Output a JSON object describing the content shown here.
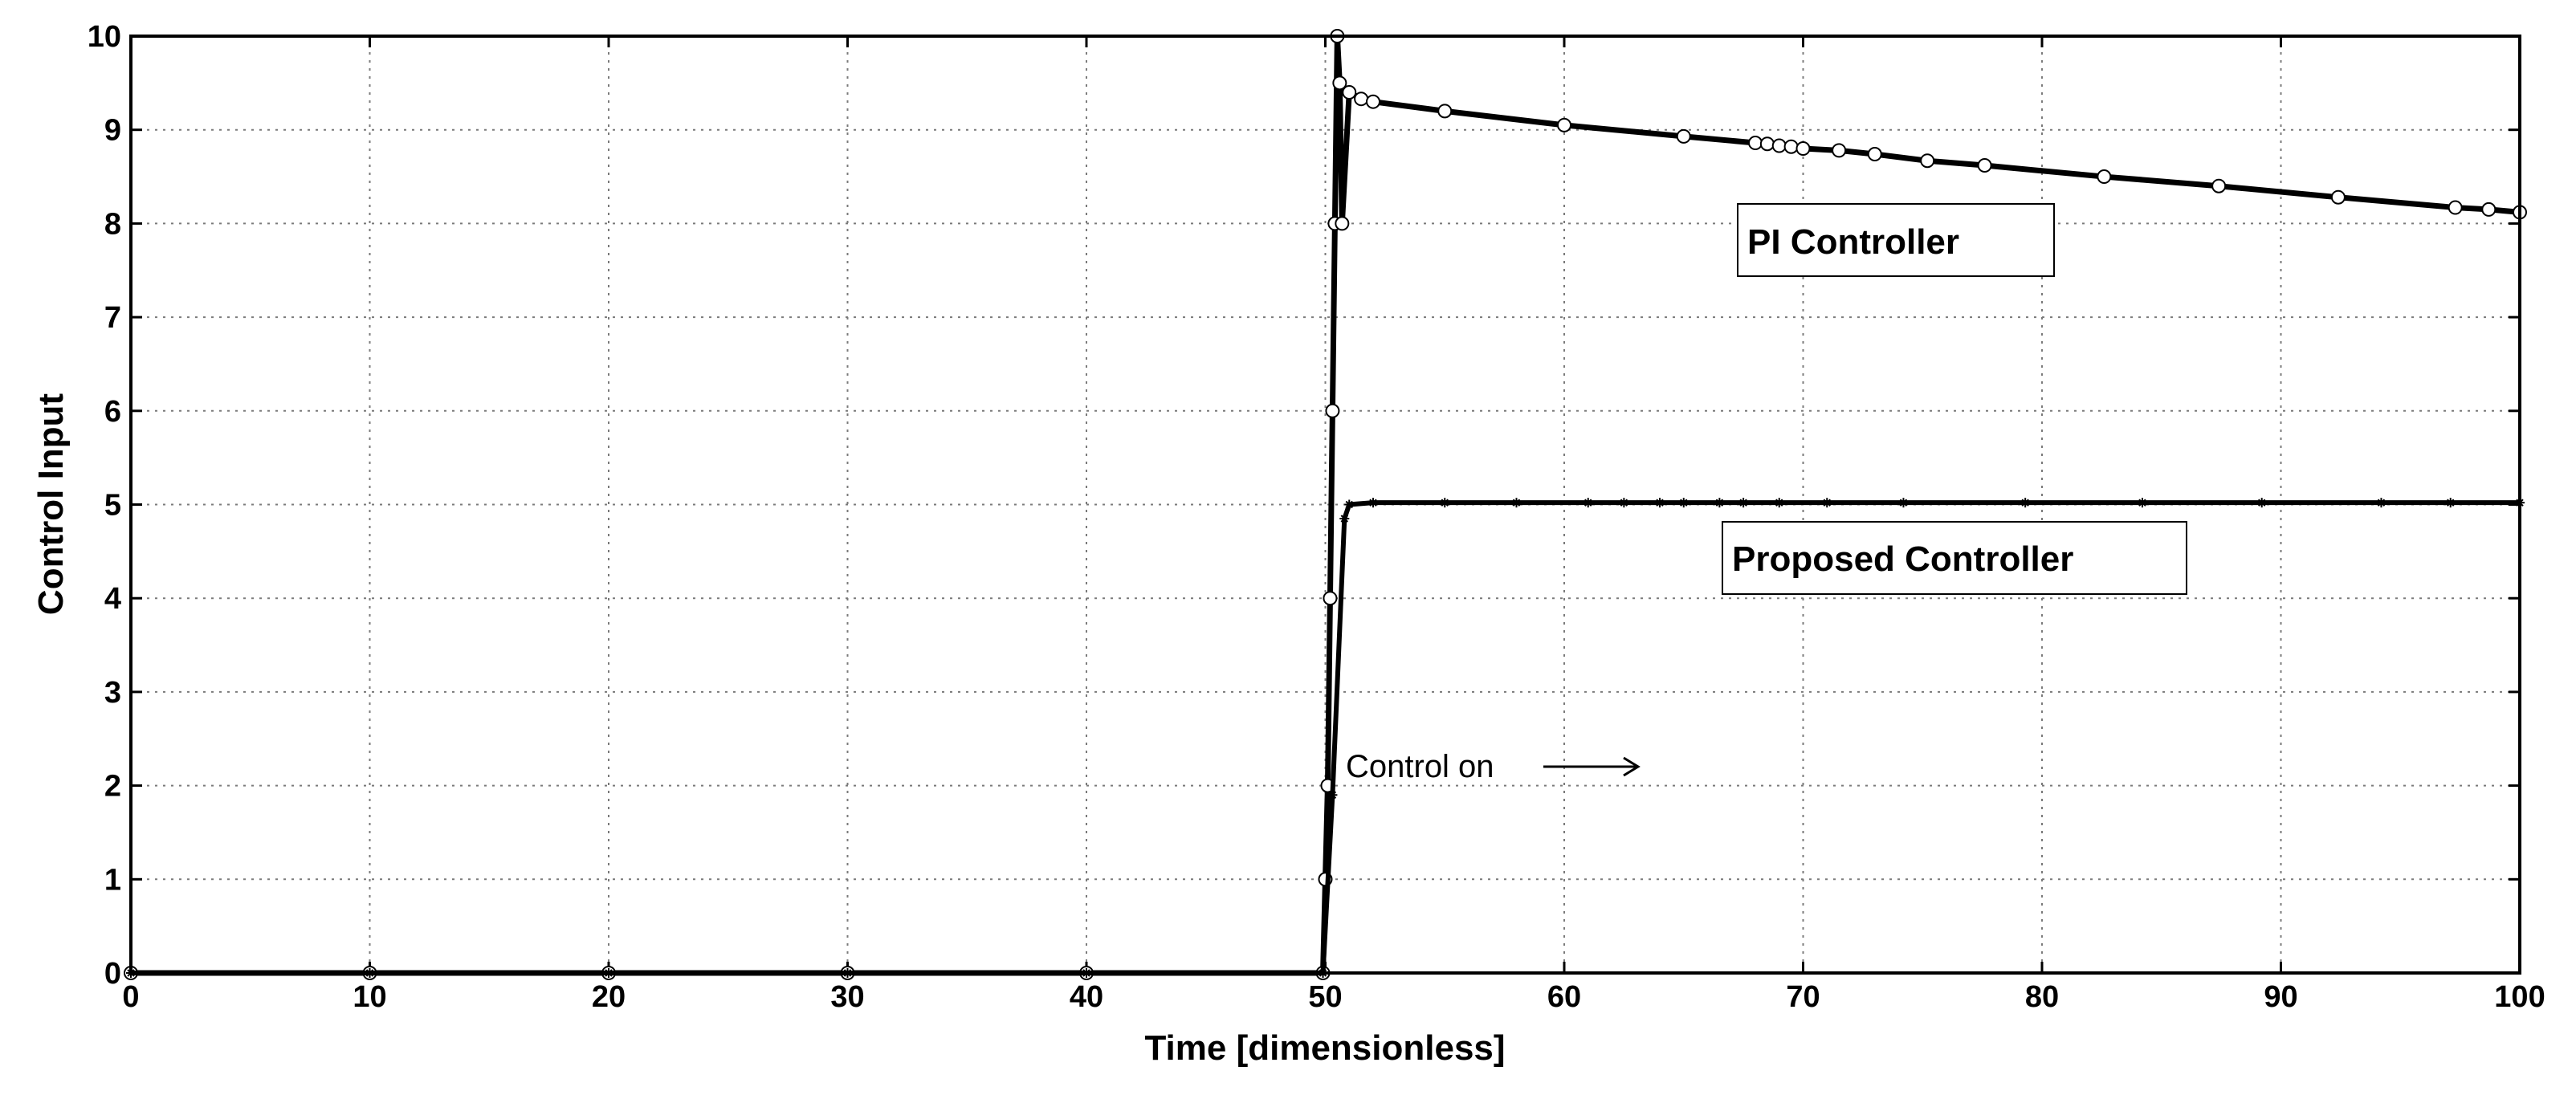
{
  "chart_data": {
    "type": "scatter",
    "title": "",
    "xlabel": "Time [dimensionless]",
    "ylabel": "Control Input",
    "xlim": [
      0,
      100
    ],
    "ylim": [
      0,
      10
    ],
    "xticks": [
      0,
      10,
      20,
      30,
      40,
      50,
      60,
      70,
      80,
      90,
      100
    ],
    "yticks": [
      0,
      1,
      2,
      3,
      4,
      5,
      6,
      7,
      8,
      9,
      10
    ],
    "grid": true,
    "series": [
      {
        "name": "PI Controller",
        "marker": "circle",
        "color": "#000000",
        "x": [
          0,
          10,
          20,
          30,
          40,
          49.9,
          50.0,
          50.1,
          50.2,
          50.3,
          50.4,
          50.5,
          50.6,
          50.7,
          51.0,
          51.5,
          52,
          55,
          60,
          65,
          68,
          68.5,
          69,
          69.5,
          70,
          71.5,
          73,
          75.2,
          77.6,
          82.6,
          87.4,
          92.4,
          97.3,
          98.7,
          100
        ],
        "y": [
          0,
          0,
          0,
          0,
          0,
          0,
          1,
          2,
          4,
          6,
          8,
          10,
          9.5,
          8,
          9.4,
          9.33,
          9.3,
          9.2,
          9.05,
          8.93,
          8.86,
          8.85,
          8.83,
          8.82,
          8.8,
          8.78,
          8.74,
          8.67,
          8.62,
          8.5,
          8.4,
          8.28,
          8.17,
          8.15,
          8.12
        ]
      },
      {
        "name": "Proposed Controller",
        "marker": "star",
        "color": "#000000",
        "x": [
          0,
          10,
          20,
          30,
          40,
          49.9,
          50.3,
          50.8,
          51,
          52,
          55,
          58,
          61,
          62.5,
          64,
          65,
          66.5,
          67.5,
          69,
          71,
          74.2,
          79.3,
          84.2,
          89.2,
          94.2,
          97.1,
          100
        ],
        "y": [
          0,
          0,
          0,
          0,
          0,
          0,
          1.9,
          4.85,
          5.0,
          5.02,
          5.02,
          5.02,
          5.02,
          5.02,
          5.02,
          5.02,
          5.02,
          5.02,
          5.02,
          5.02,
          5.02,
          5.02,
          5.02,
          5.02,
          5.02,
          5.02,
          5.02
        ]
      }
    ],
    "annotations": [
      {
        "text": "PI Controller"
      },
      {
        "text": "Proposed Controller"
      },
      {
        "text": "Control on"
      }
    ]
  }
}
